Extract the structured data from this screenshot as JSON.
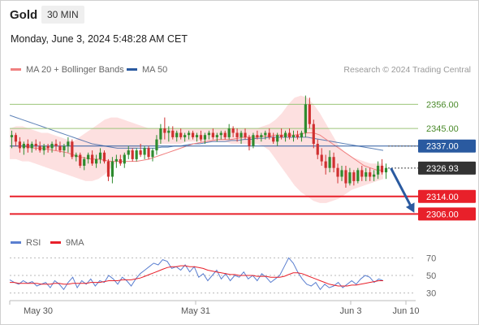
{
  "header": {
    "title": "Gold",
    "interval": "30 MIN",
    "datetime": "Monday, June 3, 2024 5:48:28 AM CET"
  },
  "legend": {
    "ma20_label": "MA 20 + Bollinger Bands",
    "ma50_label": "MA 50",
    "rsi_label": "RSI",
    "rsi_ma_label": "9MA",
    "credit": "Research © 2024 Trading Central"
  },
  "colors": {
    "ma20": "#f08080",
    "ma50": "#2a5aa0",
    "bollinger_fill": "#fde0e0",
    "up_candle": "#2e8b2e",
    "down_candle": "#d03030",
    "resistance": "#9cc47a",
    "support": "#e8202a",
    "pivot": "#2a5aa0",
    "arrow": "#2a5aa0",
    "rsi": "#5b7fd0",
    "rsi_ma": "#e8202a",
    "current_price_bg": "#333333"
  },
  "chart_data": [
    {
      "type": "candlestick",
      "title": "Gold",
      "x_ticks": [
        "May 30",
        "May 31",
        "Jun 3",
        "Jun 10"
      ],
      "ylim": [
        2298,
        2368
      ],
      "levels": [
        {
          "value": 2356.0,
          "label": "2356.00",
          "kind": "resistance"
        },
        {
          "value": 2345.0,
          "label": "2345.00",
          "kind": "resistance"
        },
        {
          "value": 2337.0,
          "label": "2337.00",
          "kind": "pivot"
        },
        {
          "value": 2326.93,
          "label": "2326.93",
          "kind": "current"
        },
        {
          "value": 2314.0,
          "label": "2314.00",
          "kind": "support"
        },
        {
          "value": 2306.0,
          "label": "2306.00",
          "kind": "support"
        }
      ],
      "forecast_arrow": {
        "from": 2326.93,
        "to": 2306.0
      },
      "candles": [
        {
          "o": 2341,
          "h": 2344,
          "l": 2336,
          "c": 2342
        },
        {
          "o": 2342,
          "h": 2343,
          "l": 2337,
          "c": 2339
        },
        {
          "o": 2339,
          "h": 2341,
          "l": 2334,
          "c": 2336
        },
        {
          "o": 2336,
          "h": 2339,
          "l": 2333,
          "c": 2338
        },
        {
          "o": 2338,
          "h": 2340,
          "l": 2334,
          "c": 2336
        },
        {
          "o": 2336,
          "h": 2339,
          "l": 2334,
          "c": 2338
        },
        {
          "o": 2338,
          "h": 2340,
          "l": 2335,
          "c": 2337
        },
        {
          "o": 2337,
          "h": 2339,
          "l": 2334,
          "c": 2335
        },
        {
          "o": 2335,
          "h": 2338,
          "l": 2333,
          "c": 2337
        },
        {
          "o": 2337,
          "h": 2338,
          "l": 2334,
          "c": 2336
        },
        {
          "o": 2336,
          "h": 2339,
          "l": 2334,
          "c": 2338
        },
        {
          "o": 2338,
          "h": 2340,
          "l": 2335,
          "c": 2337
        },
        {
          "o": 2337,
          "h": 2339,
          "l": 2334,
          "c": 2335
        },
        {
          "o": 2335,
          "h": 2338,
          "l": 2332,
          "c": 2337
        },
        {
          "o": 2337,
          "h": 2341,
          "l": 2334,
          "c": 2339
        },
        {
          "o": 2339,
          "h": 2340,
          "l": 2331,
          "c": 2332
        },
        {
          "o": 2332,
          "h": 2334,
          "l": 2330,
          "c": 2333
        },
        {
          "o": 2333,
          "h": 2334,
          "l": 2327,
          "c": 2328
        },
        {
          "o": 2328,
          "h": 2332,
          "l": 2326,
          "c": 2331
        },
        {
          "o": 2331,
          "h": 2334,
          "l": 2329,
          "c": 2333
        },
        {
          "o": 2333,
          "h": 2335,
          "l": 2328,
          "c": 2329
        },
        {
          "o": 2329,
          "h": 2333,
          "l": 2327,
          "c": 2331
        },
        {
          "o": 2331,
          "h": 2336,
          "l": 2329,
          "c": 2334
        },
        {
          "o": 2334,
          "h": 2335,
          "l": 2329,
          "c": 2330
        },
        {
          "o": 2330,
          "h": 2331,
          "l": 2321,
          "c": 2323
        },
        {
          "o": 2323,
          "h": 2332,
          "l": 2320,
          "c": 2330
        },
        {
          "o": 2330,
          "h": 2333,
          "l": 2327,
          "c": 2331
        },
        {
          "o": 2331,
          "h": 2333,
          "l": 2328,
          "c": 2329
        },
        {
          "o": 2329,
          "h": 2334,
          "l": 2327,
          "c": 2333
        },
        {
          "o": 2333,
          "h": 2337,
          "l": 2331,
          "c": 2335
        },
        {
          "o": 2335,
          "h": 2336,
          "l": 2330,
          "c": 2331
        },
        {
          "o": 2331,
          "h": 2336,
          "l": 2330,
          "c": 2335
        },
        {
          "o": 2335,
          "h": 2338,
          "l": 2332,
          "c": 2333
        },
        {
          "o": 2333,
          "h": 2337,
          "l": 2331,
          "c": 2336
        },
        {
          "o": 2336,
          "h": 2337,
          "l": 2331,
          "c": 2332
        },
        {
          "o": 2332,
          "h": 2336,
          "l": 2330,
          "c": 2335
        },
        {
          "o": 2335,
          "h": 2342,
          "l": 2333,
          "c": 2340
        },
        {
          "o": 2340,
          "h": 2347,
          "l": 2338,
          "c": 2345
        },
        {
          "o": 2345,
          "h": 2350,
          "l": 2340,
          "c": 2343
        },
        {
          "o": 2343,
          "h": 2346,
          "l": 2339,
          "c": 2344
        },
        {
          "o": 2344,
          "h": 2346,
          "l": 2340,
          "c": 2341
        },
        {
          "o": 2341,
          "h": 2344,
          "l": 2339,
          "c": 2343
        },
        {
          "o": 2343,
          "h": 2345,
          "l": 2340,
          "c": 2341
        },
        {
          "o": 2341,
          "h": 2343,
          "l": 2339,
          "c": 2342
        },
        {
          "o": 2342,
          "h": 2344,
          "l": 2340,
          "c": 2343
        },
        {
          "o": 2343,
          "h": 2344,
          "l": 2340,
          "c": 2341
        },
        {
          "o": 2341,
          "h": 2343,
          "l": 2339,
          "c": 2342
        },
        {
          "o": 2342,
          "h": 2344,
          "l": 2339,
          "c": 2340
        },
        {
          "o": 2340,
          "h": 2343,
          "l": 2338,
          "c": 2342
        },
        {
          "o": 2342,
          "h": 2344,
          "l": 2340,
          "c": 2343
        },
        {
          "o": 2343,
          "h": 2345,
          "l": 2340,
          "c": 2341
        },
        {
          "o": 2341,
          "h": 2343,
          "l": 2339,
          "c": 2342
        },
        {
          "o": 2342,
          "h": 2344,
          "l": 2340,
          "c": 2343
        },
        {
          "o": 2343,
          "h": 2344,
          "l": 2340,
          "c": 2341
        },
        {
          "o": 2341,
          "h": 2347,
          "l": 2340,
          "c": 2345
        },
        {
          "o": 2345,
          "h": 2346,
          "l": 2341,
          "c": 2343
        },
        {
          "o": 2343,
          "h": 2345,
          "l": 2339,
          "c": 2341
        },
        {
          "o": 2341,
          "h": 2344,
          "l": 2338,
          "c": 2343
        },
        {
          "o": 2343,
          "h": 2345,
          "l": 2340,
          "c": 2341
        },
        {
          "o": 2341,
          "h": 2342,
          "l": 2335,
          "c": 2337
        },
        {
          "o": 2337,
          "h": 2343,
          "l": 2336,
          "c": 2342
        },
        {
          "o": 2342,
          "h": 2344,
          "l": 2340,
          "c": 2341
        },
        {
          "o": 2341,
          "h": 2343,
          "l": 2339,
          "c": 2342
        },
        {
          "o": 2342,
          "h": 2344,
          "l": 2340,
          "c": 2343
        },
        {
          "o": 2343,
          "h": 2345,
          "l": 2340,
          "c": 2341
        },
        {
          "o": 2341,
          "h": 2343,
          "l": 2338,
          "c": 2339
        },
        {
          "o": 2339,
          "h": 2343,
          "l": 2337,
          "c": 2342
        },
        {
          "o": 2342,
          "h": 2345,
          "l": 2340,
          "c": 2341
        },
        {
          "o": 2341,
          "h": 2344,
          "l": 2339,
          "c": 2343
        },
        {
          "o": 2343,
          "h": 2345,
          "l": 2340,
          "c": 2341
        },
        {
          "o": 2341,
          "h": 2344,
          "l": 2339,
          "c": 2342
        },
        {
          "o": 2342,
          "h": 2344,
          "l": 2340,
          "c": 2341
        },
        {
          "o": 2341,
          "h": 2344,
          "l": 2339,
          "c": 2343
        },
        {
          "o": 2343,
          "h": 2360,
          "l": 2341,
          "c": 2356
        },
        {
          "o": 2356,
          "h": 2359,
          "l": 2345,
          "c": 2347
        },
        {
          "o": 2347,
          "h": 2349,
          "l": 2336,
          "c": 2338
        },
        {
          "o": 2338,
          "h": 2340,
          "l": 2331,
          "c": 2333
        },
        {
          "o": 2333,
          "h": 2336,
          "l": 2328,
          "c": 2330
        },
        {
          "o": 2330,
          "h": 2333,
          "l": 2324,
          "c": 2327
        },
        {
          "o": 2327,
          "h": 2335,
          "l": 2325,
          "c": 2332
        },
        {
          "o": 2332,
          "h": 2334,
          "l": 2325,
          "c": 2327
        },
        {
          "o": 2327,
          "h": 2329,
          "l": 2320,
          "c": 2323
        },
        {
          "o": 2323,
          "h": 2328,
          "l": 2321,
          "c": 2326
        },
        {
          "o": 2326,
          "h": 2328,
          "l": 2318,
          "c": 2320
        },
        {
          "o": 2320,
          "h": 2327,
          "l": 2319,
          "c": 2325
        },
        {
          "o": 2325,
          "h": 2326,
          "l": 2319,
          "c": 2321
        },
        {
          "o": 2321,
          "h": 2327,
          "l": 2320,
          "c": 2326
        },
        {
          "o": 2326,
          "h": 2328,
          "l": 2321,
          "c": 2323
        },
        {
          "o": 2323,
          "h": 2327,
          "l": 2321,
          "c": 2325
        },
        {
          "o": 2325,
          "h": 2327,
          "l": 2321,
          "c": 2323
        },
        {
          "o": 2323,
          "h": 2326,
          "l": 2321,
          "c": 2324
        },
        {
          "o": 2324,
          "h": 2330,
          "l": 2322,
          "c": 2328
        },
        {
          "o": 2328,
          "h": 2331,
          "l": 2324,
          "c": 2325
        },
        {
          "o": 2325,
          "h": 2329,
          "l": 2322,
          "c": 2327
        }
      ],
      "ma20": [
        2337,
        2337,
        2337,
        2336.5,
        2336,
        2336,
        2335.5,
        2335,
        2334.5,
        2334,
        2333,
        2332,
        2331.5,
        2331,
        2331,
        2330.5,
        2330,
        2330,
        2330,
        2330,
        2330,
        2330.5,
        2331,
        2332,
        2333,
        2334,
        2335,
        2336,
        2337,
        2338,
        2338.5,
        2339,
        2339.5,
        2340,
        2340,
        2340,
        2340.5,
        2341,
        2341,
        2341,
        2341.5,
        2341.5,
        2342,
        2342,
        2342,
        2342,
        2342.5,
        2343,
        2343,
        2342,
        2340,
        2338,
        2336,
        2334,
        2332,
        2330,
        2328,
        2327,
        2326,
        2326
      ],
      "ma50": [
        2351,
        2350,
        2349,
        2348,
        2347,
        2346,
        2345,
        2344,
        2343,
        2342,
        2341,
        2340,
        2339,
        2338,
        2337.5,
        2337,
        2336.5,
        2336,
        2336,
        2336,
        2336,
        2336,
        2336,
        2336,
        2336.5,
        2336.5,
        2337,
        2337,
        2337.5,
        2338,
        2338,
        2338.5,
        2339,
        2339,
        2339,
        2339.5,
        2339.5,
        2340,
        2340,
        2340.5,
        2340.5,
        2341,
        2341,
        2341,
        2341,
        2341,
        2341,
        2341,
        2340.5,
        2340,
        2339.5,
        2339,
        2338.5,
        2338,
        2337.5,
        2337,
        2336.5,
        2336,
        2335.5,
        2335
      ],
      "bb_upper": [
        2345,
        2346,
        2346,
        2345,
        2344,
        2343,
        2343,
        2342,
        2341,
        2340,
        2339,
        2341,
        2343,
        2345,
        2347,
        2349,
        2350,
        2350,
        2349,
        2348,
        2347,
        2346,
        2345,
        2345,
        2345,
        2345,
        2345,
        2345,
        2345,
        2345,
        2345,
        2345,
        2345,
        2345,
        2345,
        2345,
        2345,
        2345,
        2345,
        2345,
        2346,
        2347,
        2349,
        2352,
        2356,
        2359,
        2360,
        2359,
        2356,
        2352,
        2347,
        2342,
        2337,
        2334,
        2332,
        2331,
        2330,
        2329,
        2329,
        2329
      ],
      "bb_lower": [
        2331,
        2331,
        2330,
        2330,
        2329,
        2328,
        2327,
        2326,
        2325,
        2324,
        2323,
        2322,
        2321,
        2321,
        2322,
        2324,
        2327,
        2330,
        2332,
        2334,
        2336,
        2337,
        2337,
        2337,
        2338,
        2338,
        2338,
        2338,
        2339,
        2339,
        2339,
        2339,
        2339,
        2339,
        2339,
        2338,
        2338,
        2338,
        2338,
        2338,
        2337,
        2335,
        2331,
        2327,
        2323,
        2319,
        2316,
        2314,
        2312,
        2311,
        2311,
        2312,
        2313,
        2315,
        2317,
        2318,
        2319,
        2320,
        2321,
        2322
      ]
    },
    {
      "type": "line",
      "title": "RSI",
      "ylim": [
        25,
        75
      ],
      "y_ticks": [
        30,
        50,
        70
      ],
      "series": [
        {
          "name": "RSI",
          "values": [
            45,
            42,
            40,
            44,
            41,
            43,
            38,
            40,
            42,
            36,
            44,
            40,
            34,
            42,
            48,
            36,
            44,
            40,
            46,
            38,
            44,
            42,
            50,
            46,
            40,
            48,
            44,
            38,
            46,
            52,
            56,
            60,
            64,
            62,
            68,
            66,
            58,
            60,
            56,
            62,
            54,
            60,
            48,
            52,
            44,
            50,
            56,
            46,
            52,
            44,
            50,
            48,
            54,
            46,
            50,
            44,
            52,
            48,
            42,
            46,
            50,
            60,
            70,
            64,
            54,
            46,
            40,
            38,
            42,
            34,
            40,
            36,
            38,
            42,
            36,
            40,
            44,
            40,
            46,
            50,
            48,
            42,
            46,
            44
          ]
        },
        {
          "name": "9MA",
          "values": [
            42,
            42,
            41,
            41,
            41,
            41,
            41,
            40,
            40,
            40,
            41,
            41,
            40,
            40,
            41,
            41,
            41,
            41,
            42,
            42,
            42,
            43,
            44,
            44,
            44,
            45,
            45,
            45,
            46,
            47,
            49,
            51,
            53,
            55,
            57,
            59,
            60,
            60,
            61,
            61,
            60,
            60,
            59,
            58,
            56,
            55,
            54,
            53,
            52,
            51,
            51,
            50,
            50,
            50,
            50,
            49,
            49,
            49,
            48,
            48,
            48,
            49,
            51,
            53,
            53,
            52,
            50,
            48,
            46,
            44,
            42,
            40,
            39,
            38,
            38,
            38,
            39,
            39,
            40,
            41,
            42,
            43,
            44,
            44
          ]
        }
      ]
    }
  ]
}
